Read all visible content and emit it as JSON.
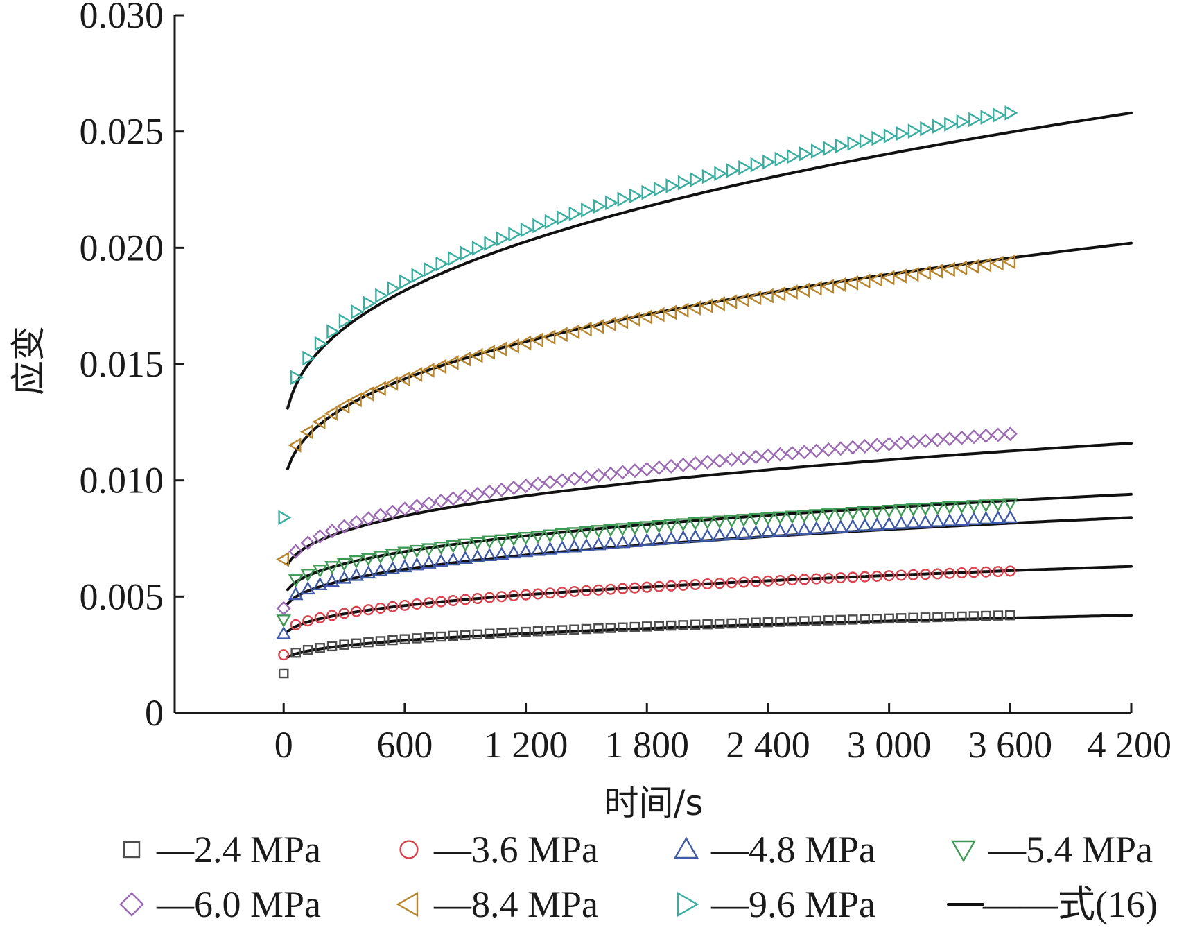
{
  "chart_data": {
    "type": "scatter",
    "xlabel": "时间/s",
    "ylabel": "应变",
    "xlim": [
      -540,
      4200
    ],
    "ylim": [
      0,
      0.03
    ],
    "x_ticks": [
      0,
      600,
      1200,
      1800,
      2400,
      3000,
      3600,
      4200
    ],
    "x_tick_labels": [
      "0",
      "600",
      "1 200",
      "1 800",
      "2 400",
      "3 000",
      "3 600",
      "4 200"
    ],
    "y_ticks": [
      0,
      0.005,
      0.01,
      0.015,
      0.02,
      0.025,
      0.03
    ],
    "y_tick_labels": [
      "0",
      "0.005",
      "0.010",
      "0.015",
      "0.020",
      "0.025",
      "0.030"
    ],
    "grid": false,
    "legend_placement": "bottom",
    "series": [
      {
        "name": "—2.4 MPa",
        "marker": "square",
        "color": "#4d4d4d",
        "y0": 0.0017,
        "y_end": 0.0042,
        "fit_start": 0.0024,
        "fit_end": 0.0042
      },
      {
        "name": "—3.6 MPa",
        "marker": "circle",
        "color": "#d9434d",
        "y0": 0.0025,
        "y_end": 0.0061,
        "fit_start": 0.0035,
        "fit_end": 0.0063
      },
      {
        "name": "—4.8 MPa",
        "marker": "triangle-up",
        "color": "#3f5aa6",
        "y0": 0.0034,
        "y_end": 0.0084,
        "fit_start": 0.0047,
        "fit_end": 0.0084
      },
      {
        "name": "—5.4 MPa",
        "marker": "triangle-down",
        "color": "#3f9a56",
        "y0": 0.004,
        "y_end": 0.009,
        "fit_start": 0.0053,
        "fit_end": 0.0094
      },
      {
        "name": "—6.0 MPa",
        "marker": "diamond",
        "color": "#9b6bb3",
        "y0": 0.0045,
        "y_end": 0.012,
        "fit_start": 0.0064,
        "fit_end": 0.0116
      },
      {
        "name": "—8.4 MPa",
        "marker": "triangle-left",
        "color": "#b8862e",
        "y0": 0.0066,
        "y_end": 0.0194,
        "fit_start": 0.0105,
        "fit_end": 0.0202
      },
      {
        "name": "—9.6 MPa",
        "marker": "triangle-right",
        "color": "#3aaea0",
        "y0": 0.0084,
        "y_end": 0.0258,
        "fit_start": 0.0131,
        "fit_end": 0.0258
      }
    ],
    "fit_legend": "——式(16)",
    "data_x_step": 60,
    "data_x_max": 3600,
    "fit_x_max": 4200
  }
}
